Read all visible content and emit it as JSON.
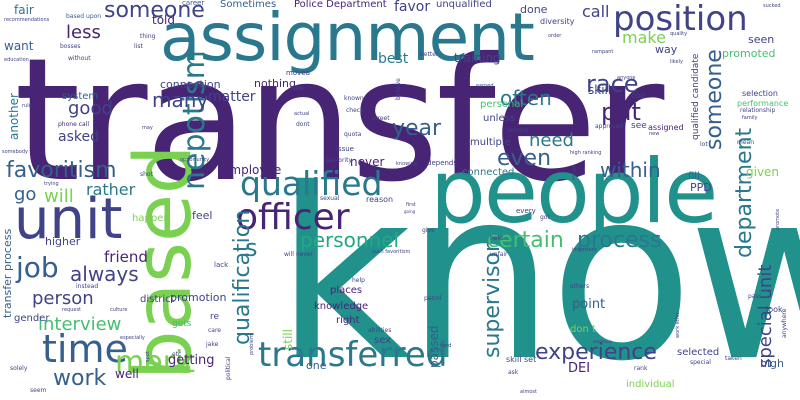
{
  "palette": {
    "dark_purple": "#482475",
    "indigo": "#404387",
    "slate_blue": "#355f8d",
    "steel_blue": "#2a788e",
    "teal": "#21918c",
    "green_teal": "#22a884",
    "green": "#44bf70",
    "lime": "#7ad151",
    "yellow_green": "#bddf26",
    "background": "#ffffff"
  },
  "words": [
    {
      "text": "transfer",
      "color": "#482475"
    },
    {
      "text": "know",
      "color": "#21918c"
    },
    {
      "text": "people",
      "color": "#21918c"
    },
    {
      "text": "assignment",
      "color": "#2a788e"
    },
    {
      "text": "based",
      "color": "#7ad151"
    },
    {
      "text": "unit",
      "color": "#404387"
    },
    {
      "text": "position",
      "color": "#404387"
    },
    {
      "text": "officer",
      "color": "#482475"
    },
    {
      "text": "qualified",
      "color": "#2a788e"
    },
    {
      "text": "time",
      "color": "#355f8d"
    },
    {
      "text": "transferred",
      "color": "#2a788e"
    },
    {
      "text": "nepotism",
      "color": "#2a788e"
    },
    {
      "text": "department",
      "color": "#2a788e"
    },
    {
      "text": "someone",
      "color": "#404387"
    },
    {
      "text": "someone",
      "color": "#355f8d"
    },
    {
      "text": "favoritism",
      "color": "#355f8d"
    },
    {
      "text": "job",
      "color": "#355f8d"
    },
    {
      "text": "process",
      "color": "#2a788e"
    },
    {
      "text": "personnel",
      "color": "#22a884"
    },
    {
      "text": "certain",
      "color": "#44bf70"
    },
    {
      "text": "merit",
      "color": "#7ad151"
    },
    {
      "text": "work",
      "color": "#355f8d"
    },
    {
      "text": "interview",
      "color": "#44bf70"
    },
    {
      "text": "experience",
      "color": "#404387"
    },
    {
      "text": "qualification",
      "color": "#2a788e"
    },
    {
      "text": "special unit",
      "color": "#404387"
    },
    {
      "text": "supervisor",
      "color": "#2a788e"
    },
    {
      "text": "many",
      "color": "#404387"
    },
    {
      "text": "year",
      "color": "#355f8d"
    },
    {
      "text": "race",
      "color": "#404387"
    },
    {
      "text": "put",
      "color": "#482475"
    },
    {
      "text": "even",
      "color": "#355f8d"
    },
    {
      "text": "need",
      "color": "#2a788e"
    },
    {
      "text": "often",
      "color": "#2a788e"
    },
    {
      "text": "within",
      "color": "#355f8d"
    },
    {
      "text": "s",
      "color": "#2a788e"
    },
    {
      "text": "always",
      "color": "#404387"
    },
    {
      "text": "will",
      "color": "#7ad151"
    },
    {
      "text": "go",
      "color": "#355f8d"
    },
    {
      "text": "rather",
      "color": "#2a788e"
    },
    {
      "text": "friend",
      "color": "#482475"
    },
    {
      "text": "person",
      "color": "#404387"
    },
    {
      "text": "best",
      "color": "#2a788e"
    },
    {
      "text": "less",
      "color": "#482475"
    },
    {
      "text": "good",
      "color": "#404387"
    },
    {
      "text": "asked",
      "color": "#404387"
    },
    {
      "text": "matter",
      "color": "#404387"
    },
    {
      "text": "make",
      "color": "#7ad151"
    },
    {
      "text": "call",
      "color": "#404387"
    },
    {
      "text": "skill",
      "color": "#404387"
    },
    {
      "text": "told",
      "color": "#482475"
    },
    {
      "text": "favor",
      "color": "#404387"
    },
    {
      "text": "getting",
      "color": "#482475"
    },
    {
      "text": "well",
      "color": "#482475"
    },
    {
      "text": "promoted",
      "color": "#44bf70"
    },
    {
      "text": "seen",
      "color": "#404387"
    },
    {
      "text": "given",
      "color": "#7ad151"
    },
    {
      "text": "high",
      "color": "#355f8d"
    },
    {
      "text": "point",
      "color": "#355f8d"
    },
    {
      "text": "employee",
      "color": "#482475"
    },
    {
      "text": "never",
      "color": "#482475"
    },
    {
      "text": "connection",
      "color": "#404387"
    },
    {
      "text": "nothing",
      "color": "#482475"
    },
    {
      "text": "training",
      "color": "#404387"
    },
    {
      "text": "promotion",
      "color": "#404387"
    },
    {
      "text": "PPD",
      "color": "#404387"
    },
    {
      "text": "passed",
      "color": "#355f8d"
    },
    {
      "text": "want",
      "color": "#355f8d"
    },
    {
      "text": "DEI",
      "color": "#482475"
    },
    {
      "text": "one",
      "color": "#355f8d"
    },
    {
      "text": "still",
      "color": "#7ad151"
    },
    {
      "text": "done",
      "color": "#404387"
    },
    {
      "text": "feel",
      "color": "#404387"
    },
    {
      "text": "connected",
      "color": "#2a788e"
    },
    {
      "text": "personal",
      "color": "#44bf70"
    },
    {
      "text": "way",
      "color": "#404387"
    },
    {
      "text": "higher",
      "color": "#404387"
    },
    {
      "text": "happen",
      "color": "#7ad151"
    },
    {
      "text": "Sometimes",
      "color": "#355f8d"
    },
    {
      "text": "Police Department",
      "color": "#482475"
    },
    {
      "text": "unqualified",
      "color": "#404387"
    },
    {
      "text": "transfer process",
      "color": "#355f8d"
    },
    {
      "text": "gender",
      "color": "#404387"
    },
    {
      "text": "another",
      "color": "#2a788e"
    },
    {
      "text": "sex",
      "color": "#404387"
    },
    {
      "text": "fill",
      "color": "#355f8d"
    },
    {
      "text": "places",
      "color": "#482475"
    },
    {
      "text": "knowledge",
      "color": "#482475"
    },
    {
      "text": "right",
      "color": "#482475"
    },
    {
      "text": "district",
      "color": "#404387"
    },
    {
      "text": "system",
      "color": "#355f8d"
    },
    {
      "text": "fair",
      "color": "#2a788e"
    },
    {
      "text": "unless",
      "color": "#404387"
    },
    {
      "text": "multiple",
      "color": "#404387"
    },
    {
      "text": "skill set",
      "color": "#404387"
    },
    {
      "text": "selected",
      "color": "#404387"
    },
    {
      "text": "individual",
      "color": "#7ad151"
    },
    {
      "text": "don t",
      "color": "#7ad151"
    },
    {
      "text": "selection",
      "color": "#404387"
    },
    {
      "text": "performance",
      "color": "#44bf70"
    },
    {
      "text": "relationship",
      "color": "#404387"
    },
    {
      "text": "qualified candidate",
      "color": "#404387"
    },
    {
      "text": "cop",
      "color": "#404387"
    },
    {
      "text": "assigned",
      "color": "#482475"
    },
    {
      "text": "see",
      "color": "#404387"
    },
    {
      "text": "approved",
      "color": "#404387"
    },
    {
      "text": "service",
      "color": "#404387"
    },
    {
      "text": "diversity",
      "color": "#404387"
    },
    {
      "text": "career",
      "color": "#355f8d"
    },
    {
      "text": "based upon",
      "color": "#355f8d"
    },
    {
      "text": "bosses",
      "color": "#404387"
    },
    {
      "text": "without",
      "color": "#404387"
    },
    {
      "text": "education",
      "color": "#404387"
    },
    {
      "text": "phone call",
      "color": "#482475"
    },
    {
      "text": "list",
      "color": "#404387"
    },
    {
      "text": "thing",
      "color": "#404387"
    },
    {
      "text": "recommendations",
      "color": "#404387"
    },
    {
      "text": "sucked",
      "color": "#404387"
    },
    {
      "text": "order",
      "color": "#404387"
    },
    {
      "text": "quality",
      "color": "#404387"
    },
    {
      "text": "likely",
      "color": "#404387"
    },
    {
      "text": "rampant",
      "color": "#404387"
    },
    {
      "text": "anyone",
      "color": "#404387"
    },
    {
      "text": "better",
      "color": "#404387"
    },
    {
      "text": "moved",
      "color": "#404387"
    },
    {
      "text": "take",
      "color": "#404387"
    },
    {
      "text": "known",
      "color": "#404387"
    },
    {
      "text": "check",
      "color": "#404387"
    },
    {
      "text": "street",
      "color": "#404387"
    },
    {
      "text": "earned",
      "color": "#404387"
    },
    {
      "text": "believe",
      "color": "#404387"
    },
    {
      "text": "come",
      "color": "#404387"
    },
    {
      "text": "actual",
      "color": "#404387"
    },
    {
      "text": "dont",
      "color": "#404387"
    },
    {
      "text": "quota",
      "color": "#404387"
    },
    {
      "text": "issue",
      "color": "#404387"
    },
    {
      "text": "opportunity",
      "color": "#404387"
    },
    {
      "text": "seniority",
      "color": "#404387"
    },
    {
      "text": "high ranking",
      "color": "#404387"
    },
    {
      "text": "family",
      "color": "#404387"
    },
    {
      "text": "mean",
      "color": "#404387"
    },
    {
      "text": "lot",
      "color": "#404387"
    },
    {
      "text": "new",
      "color": "#404387"
    },
    {
      "text": "rule",
      "color": "#404387"
    },
    {
      "text": "somebody",
      "color": "#404387"
    },
    {
      "text": "shot",
      "color": "#404387"
    },
    {
      "text": "trying",
      "color": "#404387"
    },
    {
      "text": "instead",
      "color": "#404387"
    },
    {
      "text": "request",
      "color": "#404387"
    },
    {
      "text": "culture",
      "color": "#404387"
    },
    {
      "text": "especially",
      "color": "#404387"
    },
    {
      "text": "gets",
      "color": "#44bf70"
    },
    {
      "text": "etc",
      "color": "#404387"
    },
    {
      "text": "spot",
      "color": "#404387"
    },
    {
      "text": "solely",
      "color": "#404387"
    },
    {
      "text": "seem",
      "color": "#404387"
    },
    {
      "text": "lack",
      "color": "#404387"
    },
    {
      "text": "re",
      "color": "#404387"
    },
    {
      "text": "care",
      "color": "#404387"
    },
    {
      "text": "jake",
      "color": "#404387"
    },
    {
      "text": "political",
      "color": "#404387"
    },
    {
      "text": "abilities",
      "color": "#404387"
    },
    {
      "text": "will never",
      "color": "#404387"
    },
    {
      "text": "help",
      "color": "#404387"
    },
    {
      "text": "reason",
      "color": "#404387"
    },
    {
      "text": "sexual",
      "color": "#404387"
    },
    {
      "text": "give",
      "color": "#404387"
    },
    {
      "text": "such favoritism",
      "color": "#404387"
    },
    {
      "text": "unfair",
      "color": "#404387"
    },
    {
      "text": "important",
      "color": "#404387"
    },
    {
      "text": "others",
      "color": "#404387"
    },
    {
      "text": "patrol",
      "color": "#404387"
    },
    {
      "text": "hard",
      "color": "#404387"
    },
    {
      "text": "ask",
      "color": "#404387"
    },
    {
      "text": "almost",
      "color": "#404387"
    },
    {
      "text": "emphasis",
      "color": "#404387"
    },
    {
      "text": "rank",
      "color": "#404387"
    },
    {
      "text": "special",
      "color": "#404387"
    },
    {
      "text": "taken",
      "color": "#404387"
    },
    {
      "text": "pass",
      "color": "#404387"
    },
    {
      "text": "look",
      "color": "#404387"
    },
    {
      "text": "work ethic",
      "color": "#404387"
    },
    {
      "text": "anywhere",
      "color": "#404387"
    },
    {
      "text": "every",
      "color": "#404387"
    },
    {
      "text": "got",
      "color": "#404387"
    },
    {
      "text": "enough",
      "color": "#404387"
    },
    {
      "text": "depends",
      "color": "#404387"
    },
    {
      "text": "knowing",
      "color": "#404387"
    },
    {
      "text": "first",
      "color": "#404387"
    },
    {
      "text": "going",
      "color": "#404387"
    },
    {
      "text": "held",
      "color": "#404387"
    },
    {
      "text": "may",
      "color": "#404387"
    },
    {
      "text": "problem",
      "color": "#404387"
    },
    {
      "text": "promote",
      "color": "#404387"
    }
  ]
}
